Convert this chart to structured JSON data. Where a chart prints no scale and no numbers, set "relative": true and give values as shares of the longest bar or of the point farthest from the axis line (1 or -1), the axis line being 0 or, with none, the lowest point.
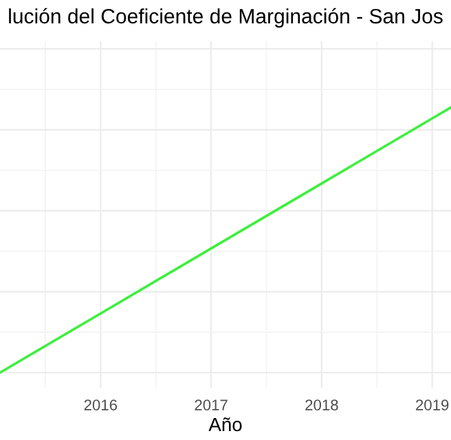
{
  "chart_data": {
    "type": "line",
    "title": "lución del Coeficiente de Marginación - San Jos",
    "xlabel": "Año",
    "relative": true,
    "x": [
      2015.09,
      2016,
      2017,
      2018,
      2019,
      2019.17
    ],
    "series": [
      {
        "color": "#3cf03c",
        "values": [
          0,
          0.223,
          0.468,
          0.713,
          0.958,
          1
        ]
      }
    ],
    "xlim": [
      2015.09,
      2019.17
    ],
    "xticks": [
      2016,
      2017,
      2018,
      2019
    ],
    "grid": true,
    "tick_labels": "x"
  }
}
